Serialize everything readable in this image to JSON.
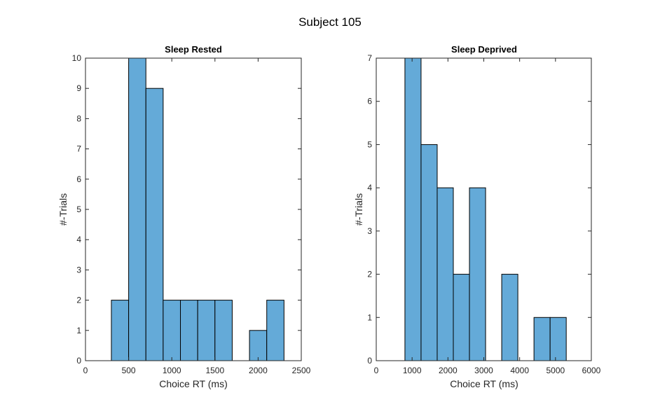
{
  "figure": {
    "suptitle": "Subject 105"
  },
  "chart_data": [
    {
      "type": "bar",
      "title": "Sleep Rested",
      "xlabel": "Choice RT (ms)",
      "ylabel": "#-Trials",
      "xlim": [
        0,
        2500
      ],
      "ylim": [
        0,
        10
      ],
      "xticks": [
        0,
        500,
        1000,
        1500,
        2000,
        2500
      ],
      "yticks": [
        0,
        1,
        2,
        3,
        4,
        5,
        6,
        7,
        8,
        9,
        10
      ],
      "bins": [
        {
          "x0": 300,
          "x1": 500,
          "count": 2
        },
        {
          "x0": 500,
          "x1": 700,
          "count": 10
        },
        {
          "x0": 700,
          "x1": 900,
          "count": 9
        },
        {
          "x0": 900,
          "x1": 1100,
          "count": 2
        },
        {
          "x0": 1100,
          "x1": 1300,
          "count": 2
        },
        {
          "x0": 1300,
          "x1": 1500,
          "count": 2
        },
        {
          "x0": 1500,
          "x1": 1700,
          "count": 2
        },
        {
          "x0": 1700,
          "x1": 1900,
          "count": 0
        },
        {
          "x0": 1900,
          "x1": 2100,
          "count": 1
        },
        {
          "x0": 2100,
          "x1": 2300,
          "count": 2
        }
      ],
      "color": "#64aad8"
    },
    {
      "type": "bar",
      "title": "Sleep Deprived",
      "xlabel": "Choice RT (ms)",
      "ylabel": "#-Trials",
      "xlim": [
        0,
        6000
      ],
      "ylim": [
        0,
        7
      ],
      "xticks": [
        0,
        1000,
        2000,
        3000,
        4000,
        5000,
        6000
      ],
      "yticks": [
        0,
        1,
        2,
        3,
        4,
        5,
        6,
        7
      ],
      "bins": [
        {
          "x0": 800,
          "x1": 1250,
          "count": 7
        },
        {
          "x0": 1250,
          "x1": 1700,
          "count": 5
        },
        {
          "x0": 1700,
          "x1": 2150,
          "count": 4
        },
        {
          "x0": 2150,
          "x1": 2600,
          "count": 2
        },
        {
          "x0": 2600,
          "x1": 3050,
          "count": 4
        },
        {
          "x0": 3050,
          "x1": 3500,
          "count": 0
        },
        {
          "x0": 3500,
          "x1": 3950,
          "count": 2
        },
        {
          "x0": 3950,
          "x1": 4400,
          "count": 0
        },
        {
          "x0": 4400,
          "x1": 4850,
          "count": 1
        },
        {
          "x0": 4850,
          "x1": 5300,
          "count": 1
        }
      ],
      "color": "#64aad8"
    }
  ]
}
